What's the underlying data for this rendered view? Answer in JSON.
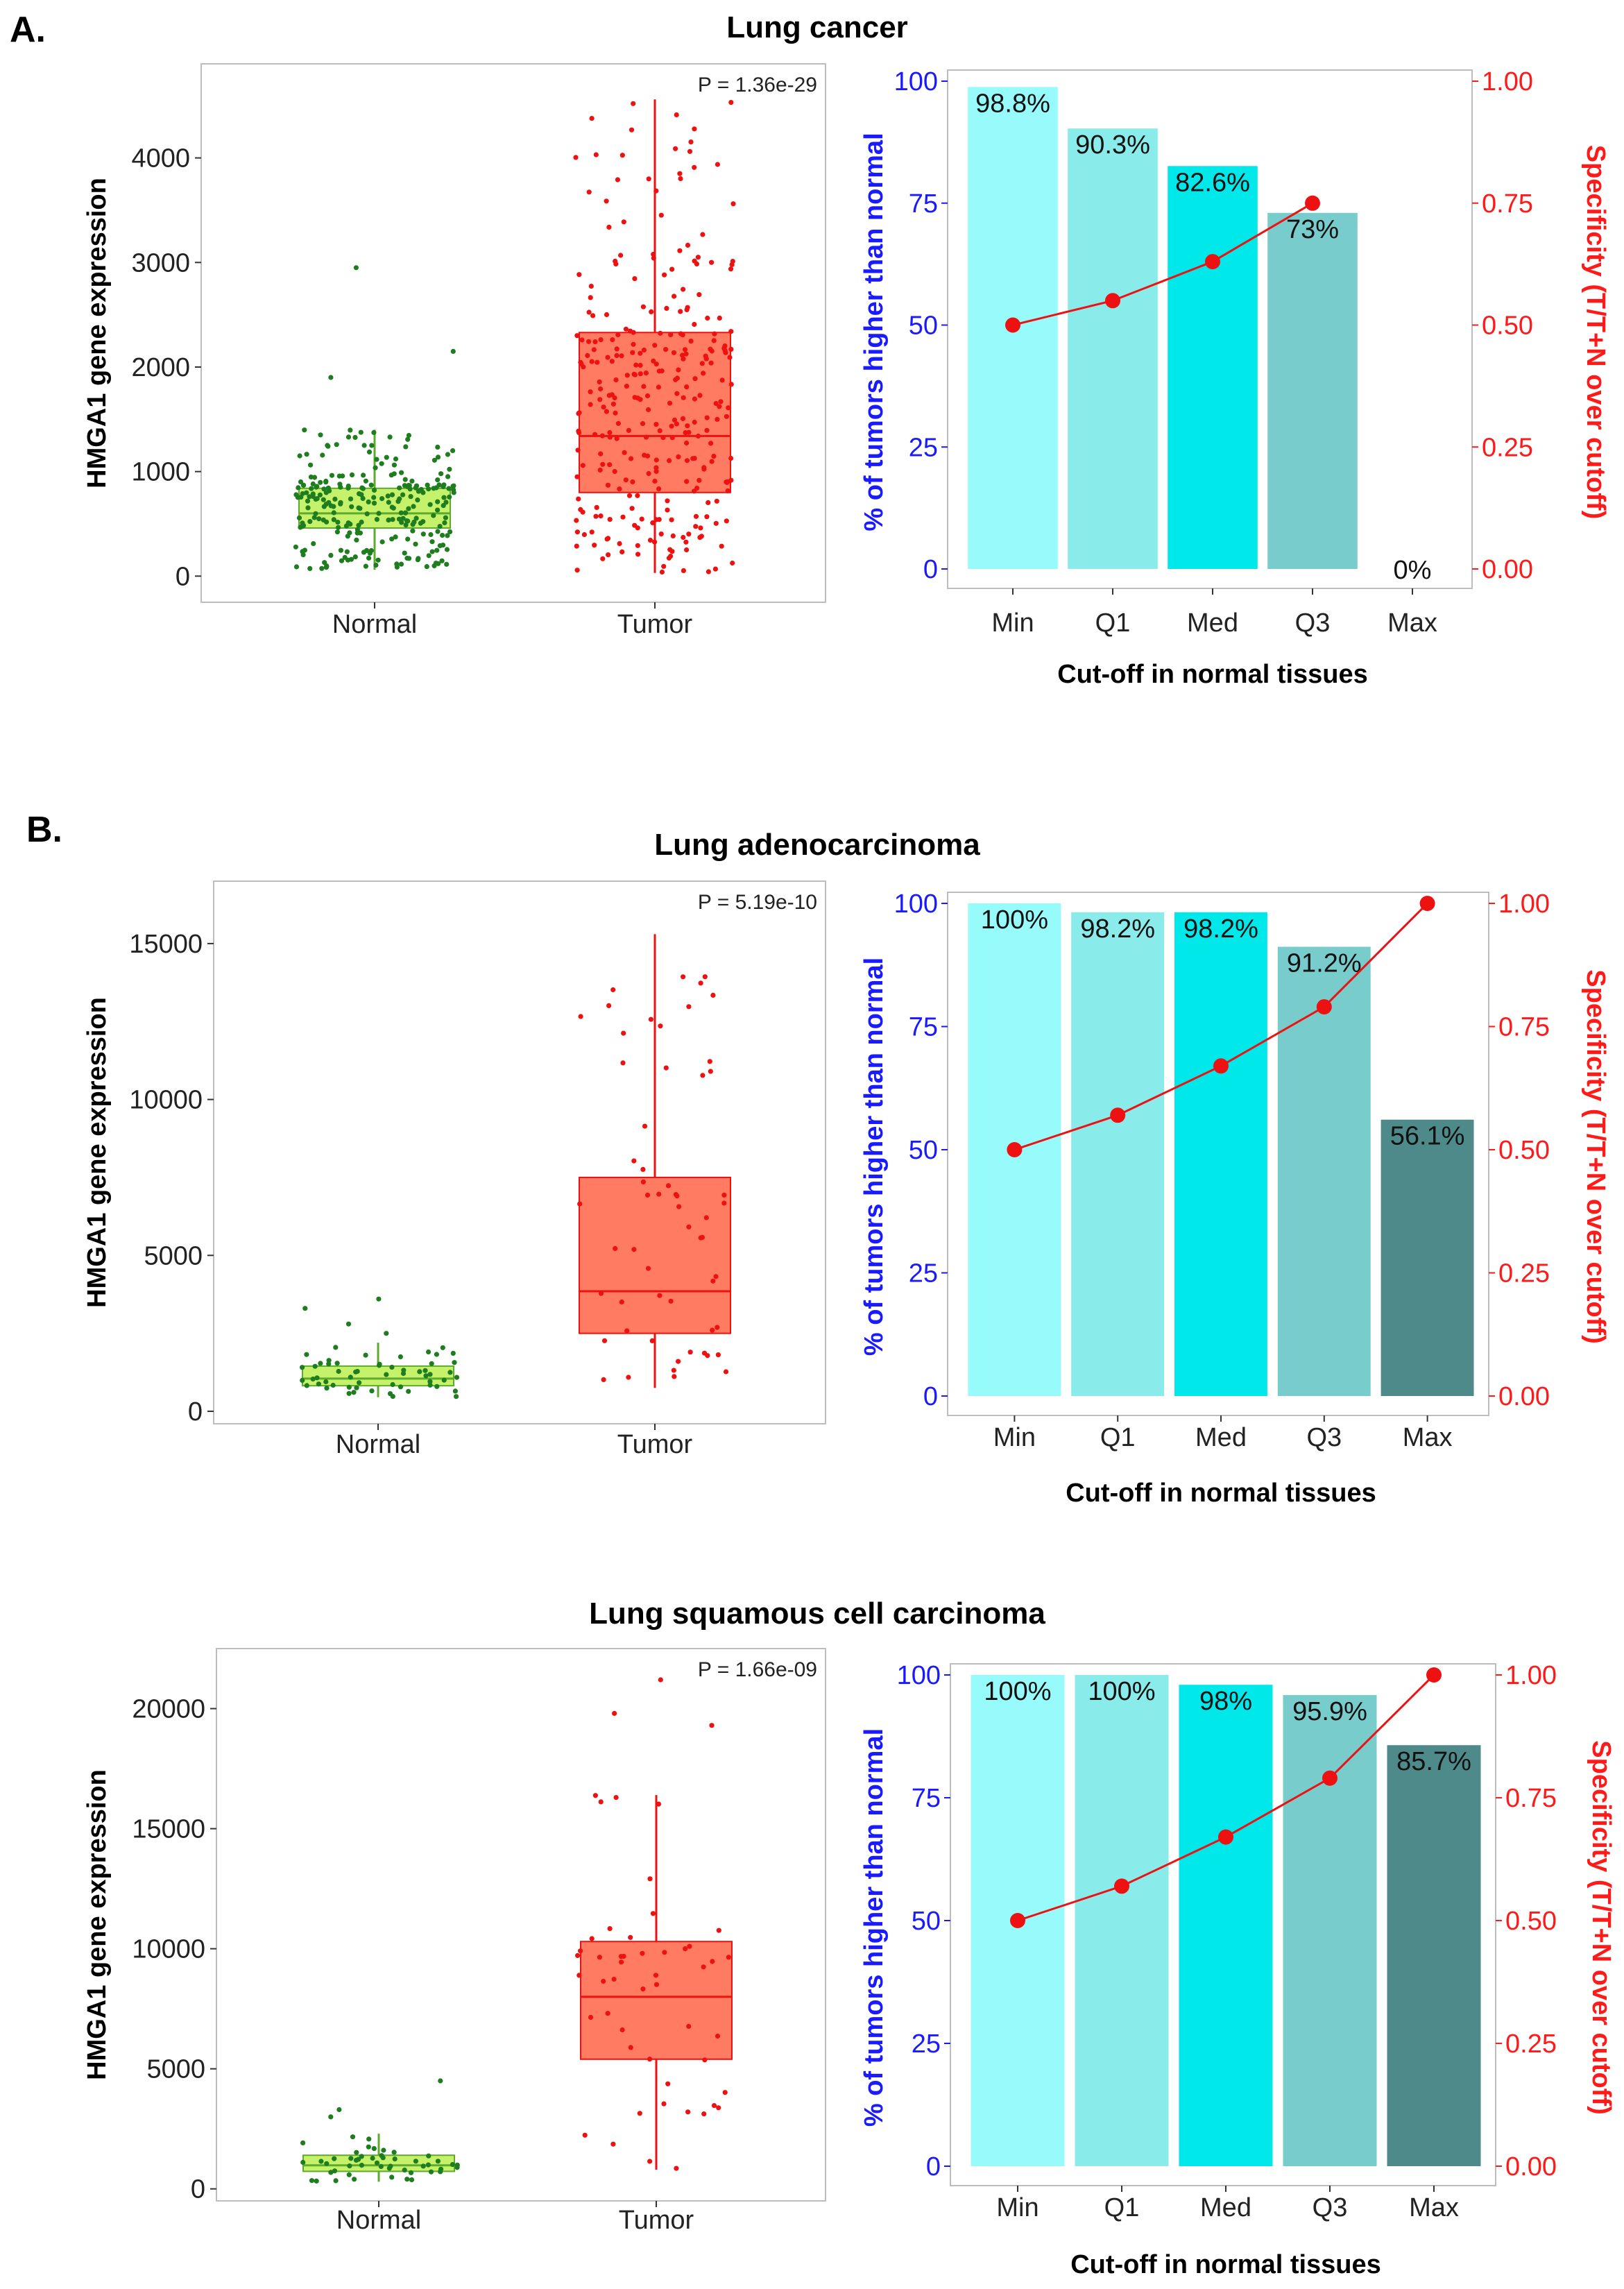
{
  "figure": {
    "panel_labels": [
      "A.",
      "B."
    ],
    "colors": {
      "normal_fill": "#c6f26b",
      "normal_edge": "#5daa2c",
      "normal_point": "#1e7d1e",
      "tumor_fill": "#ff7b61",
      "tumor_edge": "#ee1111",
      "tumor_point": "#ee1111",
      "bar_colors": [
        "#98fbfb",
        "#8aebeb",
        "#00e8ea",
        "#78cccc",
        "#4f8a8a"
      ],
      "left_axis": "#1a1aff",
      "right_axis": "#ff1a1a",
      "line": "#ee1111"
    }
  },
  "chart_data": [
    {
      "type": "box",
      "title": "Lung cancer",
      "ylabel": "HMGA1 gene expression",
      "categories": [
        "Normal",
        "Tumor"
      ],
      "ylim": [
        -250,
        4900
      ],
      "yticks": [
        0,
        1000,
        2000,
        3000,
        4000
      ],
      "pvalue": "P = 1.36e-29",
      "boxes": [
        {
          "name": "Normal",
          "q1": 460,
          "median": 600,
          "q3": 840,
          "whisker_low": 60,
          "whisker_high": 1400,
          "n_points": 260,
          "max_point": 2950,
          "outliers": [
            2150,
            1900,
            2950
          ]
        },
        {
          "name": "Tumor",
          "q1": 800,
          "median": 1340,
          "q3": 2330,
          "whisker_low": 30,
          "whisker_high": 4560,
          "n_points": 300,
          "max_point": 4560,
          "outliers": []
        }
      ]
    },
    {
      "type": "bar+line",
      "xlabel": "Cut-off in normal tissues",
      "ylabel_left": "% of tumors higher than normal",
      "ylabel_right": "Specificity (T/T+N over cutoff)",
      "categories": [
        "Min",
        "Q1",
        "Med",
        "Q3",
        "Max"
      ],
      "values": [
        98.8,
        90.3,
        82.6,
        73,
        0
      ],
      "bar_labels": [
        "98.8%",
        "90.3%",
        "82.6%",
        "73%",
        "0%"
      ],
      "specificity": [
        0.5,
        0.55,
        0.63,
        0.75,
        null
      ],
      "ylim_left": [
        0,
        100
      ],
      "yticks_left": [
        0,
        25,
        50,
        75,
        100
      ],
      "ylim_right": [
        0,
        1
      ],
      "yticks_right": [
        "0.00",
        "0.25",
        "0.50",
        "0.75",
        "1.00"
      ]
    },
    {
      "type": "box",
      "title": "Lung adenocarcinoma",
      "ylabel": "HMGA1 gene expression",
      "categories": [
        "Normal",
        "Tumor"
      ],
      "ylim": [
        -400,
        17000
      ],
      "yticks": [
        0,
        5000,
        10000,
        15000
      ],
      "pvalue": "P = 5.19e-10",
      "boxes": [
        {
          "name": "Normal",
          "q1": 820,
          "median": 1050,
          "q3": 1450,
          "whisker_low": 450,
          "whisker_high": 2200,
          "n_points": 57,
          "max_point": 3600,
          "outliers": [
            2500,
            2800,
            3300,
            3600
          ]
        },
        {
          "name": "Tumor",
          "q1": 2500,
          "median": 3850,
          "q3": 7500,
          "whisker_low": 750,
          "whisker_high": 15300,
          "n_points": 57,
          "max_point": 15300,
          "outliers": []
        }
      ]
    },
    {
      "type": "bar+line",
      "xlabel": "Cut-off in normal tissues",
      "ylabel_left": "% of tumors higher than normal",
      "ylabel_right": "Specificity (T/T+N over cutoff)",
      "categories": [
        "Min",
        "Q1",
        "Med",
        "Q3",
        "Max"
      ],
      "values": [
        100,
        98.2,
        98.2,
        91.2,
        56.1
      ],
      "bar_labels": [
        "100%",
        "98.2%",
        "98.2%",
        "91.2%",
        "56.1%"
      ],
      "specificity": [
        0.5,
        0.57,
        0.67,
        0.79,
        1.0
      ],
      "ylim_left": [
        0,
        100
      ],
      "yticks_left": [
        0,
        25,
        50,
        75,
        100
      ],
      "ylim_right": [
        0,
        1
      ],
      "yticks_right": [
        "0.00",
        "0.25",
        "0.50",
        "0.75",
        "1.00"
      ]
    },
    {
      "type": "box",
      "title": "Lung squamous cell carcinoma",
      "ylabel": "HMGA1 gene expression",
      "categories": [
        "Normal",
        "Tumor"
      ],
      "ylim": [
        -500,
        22500
      ],
      "yticks": [
        0,
        5000,
        10000,
        15000,
        20000
      ],
      "pvalue": "P = 1.66e-09",
      "boxes": [
        {
          "name": "Normal",
          "q1": 730,
          "median": 980,
          "q3": 1400,
          "whisker_low": 300,
          "whisker_high": 2300,
          "n_points": 49,
          "max_point": 4500,
          "outliers": [
            3000,
            3300,
            4500
          ]
        },
        {
          "name": "Tumor",
          "q1": 5400,
          "median": 8000,
          "q3": 10300,
          "whisker_low": 800,
          "whisker_high": 16400,
          "n_points": 49,
          "max_point": 21200,
          "outliers": [
            19300,
            19800,
            21200
          ]
        }
      ]
    },
    {
      "type": "bar+line",
      "xlabel": "Cut-off in normal tissues",
      "ylabel_left": "% of tumors higher than normal",
      "ylabel_right": "Specificity (T/T+N over cutoff)",
      "categories": [
        "Min",
        "Q1",
        "Med",
        "Q3",
        "Max"
      ],
      "values": [
        100,
        100,
        98,
        95.9,
        85.7
      ],
      "bar_labels": [
        "100%",
        "100%",
        "98%",
        "95.9%",
        "85.7%"
      ],
      "specificity": [
        0.5,
        0.57,
        0.67,
        0.79,
        1.0
      ],
      "ylim_left": [
        0,
        100
      ],
      "yticks_left": [
        0,
        25,
        50,
        75,
        100
      ],
      "ylim_right": [
        0,
        1
      ],
      "yticks_right": [
        "0.00",
        "0.25",
        "0.50",
        "0.75",
        "1.00"
      ]
    }
  ]
}
